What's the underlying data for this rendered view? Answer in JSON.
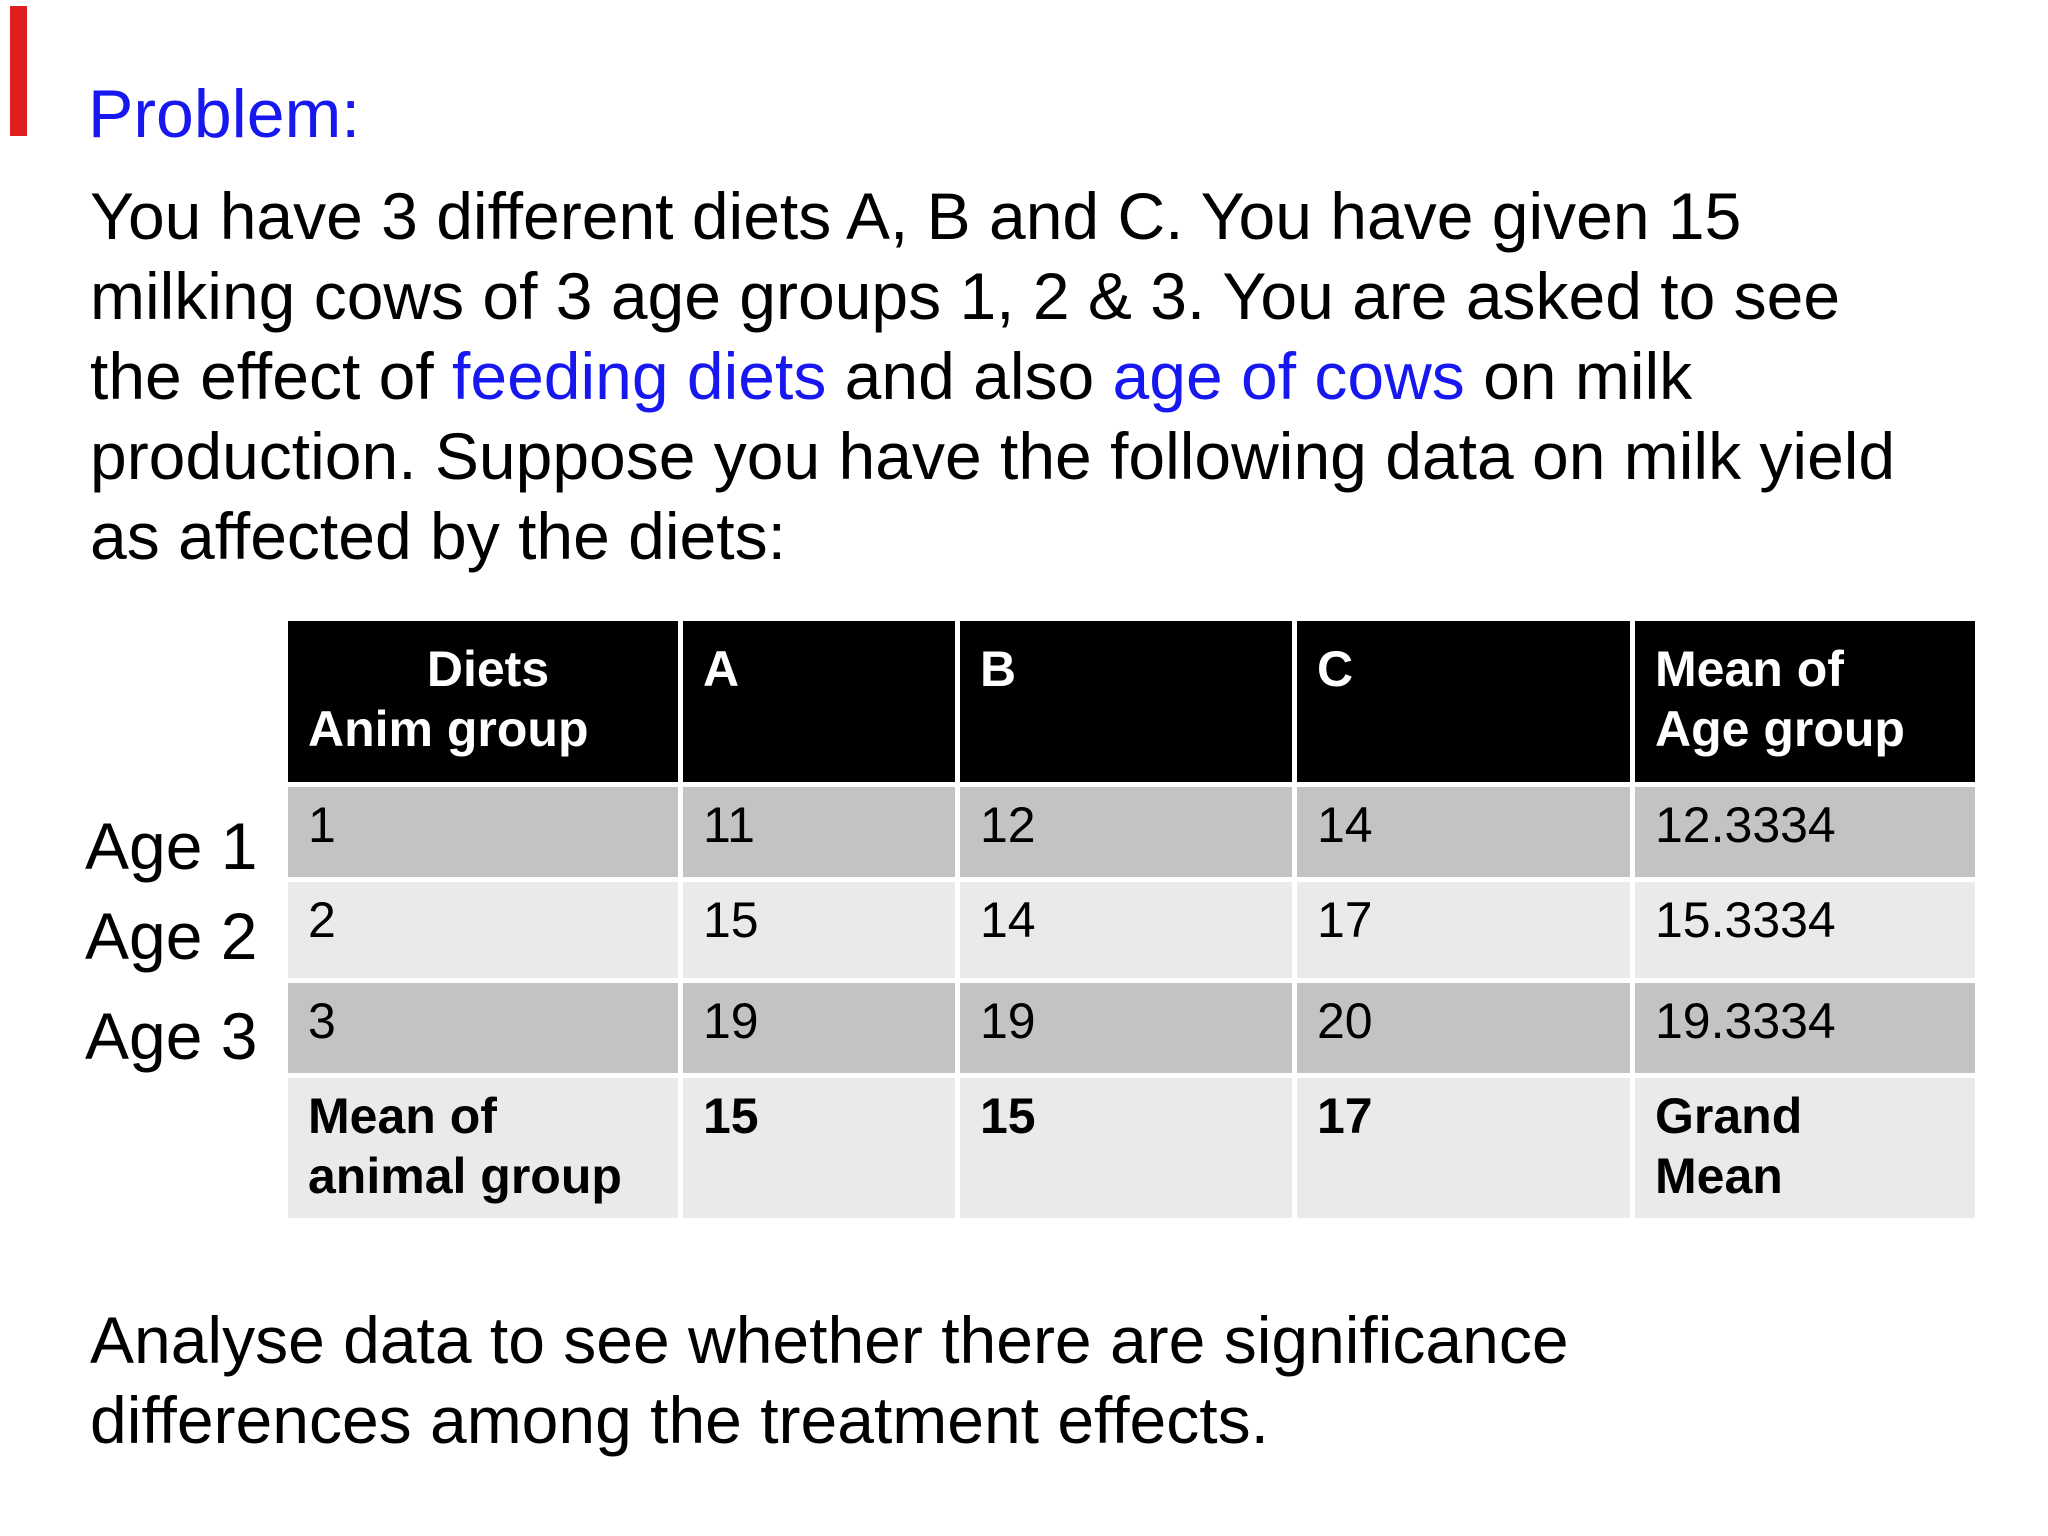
{
  "slide": {
    "heading": "Problem:",
    "paragraph_segments": [
      {
        "text": "You have 3 different diets A, B and C. You have given 15\nmilking cows of 3 age groups 1, 2 & 3. You are asked to see\nthe effect of ",
        "style": "normal"
      },
      {
        "text": "feeding diets",
        "style": "accent"
      },
      {
        "text": " and also ",
        "style": "normal"
      },
      {
        "text": "age of cows",
        "style": "accent"
      },
      {
        "text": " on milk\nproduction. Suppose you have the following data on milk yield\nas affected by the diets:",
        "style": "normal"
      }
    ],
    "closing": "Analyse data to see whether there are significance\ndifferences among the treatment effects."
  },
  "age_labels": [
    "Age 1",
    "Age 2",
    "Age 3"
  ],
  "table": {
    "header": [
      "Diets\nAnim group",
      "A",
      "B",
      "C",
      "Mean of\nAge group"
    ],
    "rows": [
      [
        "1",
        "11",
        "12",
        "14",
        "12.3334"
      ],
      [
        "2",
        "15",
        "14",
        "17",
        "15.3334"
      ],
      [
        "3",
        "19",
        "19",
        "20",
        "19.3334"
      ],
      [
        "Mean of\nanimal group",
        "15",
        "15",
        "17",
        "Grand\nMean"
      ]
    ]
  },
  "colors": {
    "accent_blue": "#1717f0",
    "text": "#000000",
    "background": "#ffffff",
    "header_bg": "#000000",
    "header_text": "#ffffff",
    "row_dark": "#c3c3c3",
    "row_light": "#eaeaea",
    "marker_red": "#e02020"
  }
}
